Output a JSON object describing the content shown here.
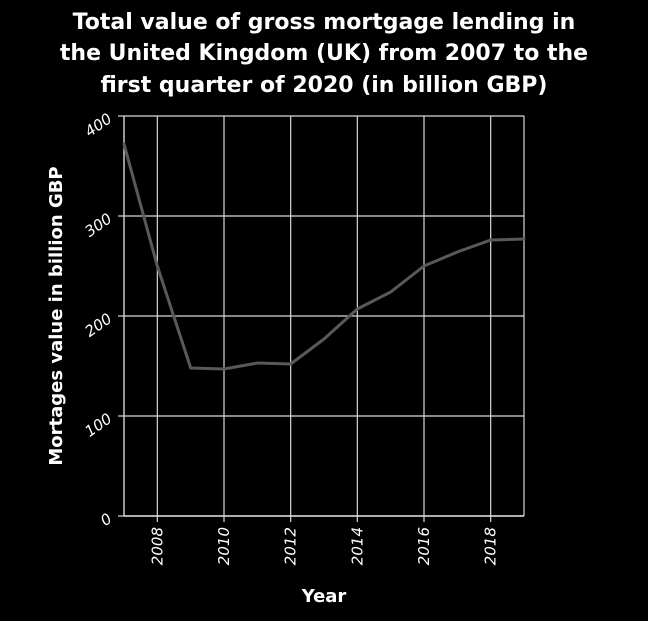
{
  "chart_data": {
    "type": "line",
    "title_lines": [
      "Total value of gross mortgage lending in",
      "the United Kingdom (UK) from 2007 to the",
      "first quarter of 2020 (in billion GBP)"
    ],
    "xlabel": "Year",
    "ylabel": "Mortages value in billion GBP",
    "xlim": [
      2007,
      2019
    ],
    "ylim": [
      0,
      400
    ],
    "x_ticks": [
      2008,
      2010,
      2012,
      2014,
      2016,
      2018
    ],
    "y_ticks": [
      0,
      100,
      200,
      300,
      400
    ],
    "grid": true,
    "series": [
      {
        "x": [
          2007,
          2008,
          2009,
          2010,
          2011,
          2012,
          2013,
          2014,
          2015,
          2016,
          2017,
          2018,
          2019
        ],
        "values": [
          372,
          250,
          148,
          147,
          153,
          152,
          177,
          207,
          224,
          250,
          264,
          276,
          277
        ]
      }
    ],
    "colors": {
      "background": "#000000",
      "plot_area": "#000000",
      "grid": "#d9d9d9",
      "line": "#595959",
      "text": "#ffffff"
    }
  }
}
